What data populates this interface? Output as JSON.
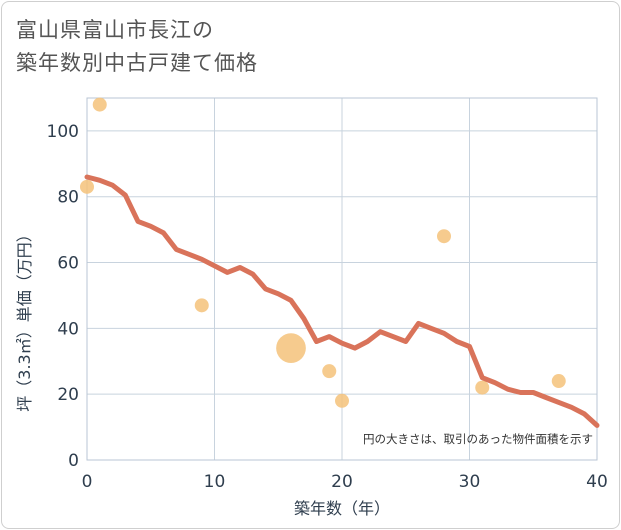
{
  "title_line1": "富山県富山市長江の",
  "title_line2": "築年数別中古戸建て価格",
  "chart_data": {
    "type": "scatter",
    "title": "富山県富山市長江の築年数別中古戸建て価格",
    "xlabel": "築年数（年）",
    "ylabel": "坪（3.3㎡）単価（万円）",
    "xlim": [
      0,
      40
    ],
    "ylim": [
      0,
      110
    ],
    "xticks": [
      0,
      10,
      20,
      30,
      40
    ],
    "yticks": [
      0,
      20,
      40,
      60,
      80,
      100
    ],
    "grid": true,
    "note": "円の大きさは、取引のあった物件面積を示す",
    "colors": {
      "bubble": "#f5c27a",
      "line": "#d9735a"
    },
    "bubbles": [
      {
        "x": 0,
        "y": 83,
        "size": 1
      },
      {
        "x": 1,
        "y": 108,
        "size": 1
      },
      {
        "x": 9,
        "y": 47,
        "size": 1
      },
      {
        "x": 16,
        "y": 34,
        "size": 4.5
      },
      {
        "x": 19,
        "y": 27,
        "size": 1
      },
      {
        "x": 20,
        "y": 18,
        "size": 1
      },
      {
        "x": 28,
        "y": 68,
        "size": 1
      },
      {
        "x": 31,
        "y": 22,
        "size": 1
      },
      {
        "x": 37,
        "y": 24,
        "size": 1
      }
    ],
    "trend": {
      "x": [
        0,
        1,
        2,
        3,
        4,
        5,
        6,
        7,
        8,
        9,
        10,
        11,
        12,
        13,
        14,
        15,
        16,
        17,
        18,
        19,
        20,
        21,
        22,
        23,
        24,
        25,
        26,
        27,
        28,
        29,
        30,
        31,
        32,
        33,
        34,
        35,
        36,
        37,
        38,
        39,
        40
      ],
      "y": [
        86,
        85,
        83.5,
        80.5,
        72.5,
        71,
        69,
        64,
        62.5,
        61,
        59,
        57,
        58.5,
        56.5,
        52,
        50.5,
        48.5,
        43,
        36,
        37.5,
        35.5,
        34,
        36,
        39,
        37.5,
        36,
        41.5,
        40,
        38.5,
        36,
        34.5,
        25,
        23.5,
        21.5,
        20.5,
        20.5,
        19,
        17.5,
        16,
        14,
        10.5
      ]
    }
  }
}
